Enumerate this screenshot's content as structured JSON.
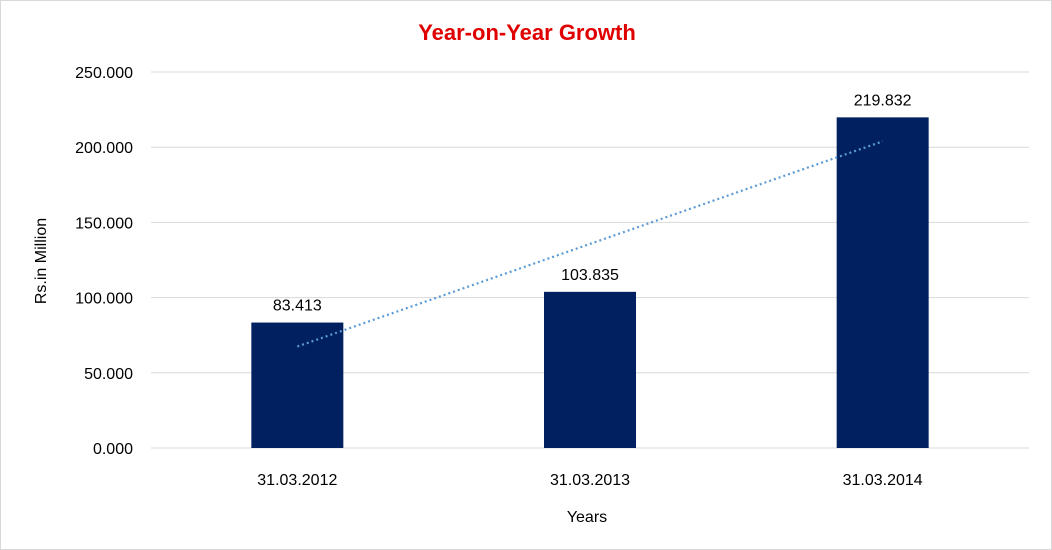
{
  "colors": {
    "title": "#e00000",
    "bar": "#002060",
    "trendline": "#5b9bd5",
    "gridline": "#d9d9d9",
    "text": "#000000"
  },
  "chart_data": {
    "type": "bar",
    "title": "Year-on-Year Growth",
    "xlabel": "Years",
    "ylabel": "Rs.in Million",
    "categories": [
      "31.03.2012",
      "31.03.2013",
      "31.03.2014"
    ],
    "values": [
      83.413,
      103.835,
      219.832
    ],
    "value_labels": [
      "83.413",
      "103.835",
      "219.832"
    ],
    "ylim": [
      0,
      250
    ],
    "yticks": [
      0,
      50,
      100,
      150,
      200,
      250
    ],
    "ytick_labels": [
      "0.000",
      "50.000",
      "100.000",
      "150.000",
      "200.000",
      "250.000"
    ],
    "trendline": "linear",
    "grid": true,
    "legend": "none"
  }
}
